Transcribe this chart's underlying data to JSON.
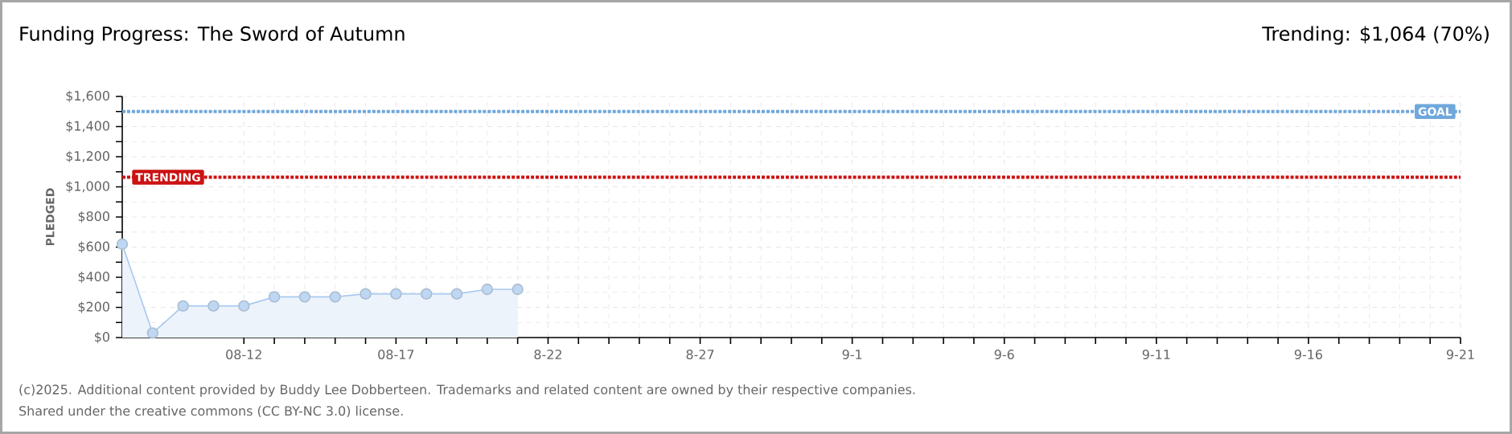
{
  "chart_data": {
    "type": "area",
    "title": "Funding Progress: The Sword of Autumn",
    "subtitle": "Trending: $1,064 (70%)",
    "ylabel": "PLEDGED",
    "x": [
      "2025-08-08",
      "2025-08-09",
      "2025-08-10",
      "2025-08-11",
      "2025-08-12",
      "2025-08-13",
      "2025-08-14",
      "2025-08-15",
      "2025-08-16",
      "2025-08-17",
      "2025-08-18",
      "2025-08-19",
      "2025-08-20",
      "2025-08-21"
    ],
    "series": [
      {
        "color": "#a9c9ef",
        "values": [
          620,
          30,
          210,
          210,
          210,
          270,
          270,
          270,
          290,
          290,
          290,
          290,
          320,
          320
        ]
      }
    ],
    "xlim": [
      "2025-08-08",
      "2025-09-21"
    ],
    "xticks": [
      {
        "value": "2025-08-12",
        "label": "08-12"
      },
      {
        "value": "2025-08-17",
        "label": "08-17"
      },
      {
        "value": "2025-08-22",
        "label": "8-22"
      },
      {
        "value": "2025-08-27",
        "label": "8-27"
      },
      {
        "value": "2025-09-01",
        "label": "9-1"
      },
      {
        "value": "2025-09-06",
        "label": "9-6"
      },
      {
        "value": "2025-09-11",
        "label": "9-11"
      },
      {
        "value": "2025-09-16",
        "label": "9-16"
      },
      {
        "value": "2025-09-21",
        "label": "9-21"
      }
    ],
    "ylim": [
      0,
      1600
    ],
    "yticks": [
      {
        "value": 0,
        "label": "$0"
      },
      {
        "value": 200,
        "label": "$200"
      },
      {
        "value": 400,
        "label": "$400"
      },
      {
        "value": 600,
        "label": "$600"
      },
      {
        "value": 800,
        "label": "$800"
      },
      {
        "value": 1000,
        "label": "$1,000"
      },
      {
        "value": 1200,
        "label": "$1,200"
      },
      {
        "value": 1400,
        "label": "$1,400"
      },
      {
        "value": 1600,
        "label": "$1,600"
      }
    ],
    "ref_lines": [
      {
        "axis": "y",
        "value": 1500,
        "label": "GOAL",
        "color": "#6fa8dc",
        "line_style": "dashed"
      },
      {
        "axis": "y",
        "value": 1064,
        "label": "TRENDING",
        "color": "#cc1111",
        "line_style": "dashed"
      }
    ],
    "grid": true,
    "marker": "circle",
    "annotations": [
      "(c)2025. Additional content provided by Buddy Lee Dobberteen. Trademarks and related content are owned by their respective companies.",
      "Shared under the creative commons (CC BY-NC 3.0) license."
    ]
  }
}
